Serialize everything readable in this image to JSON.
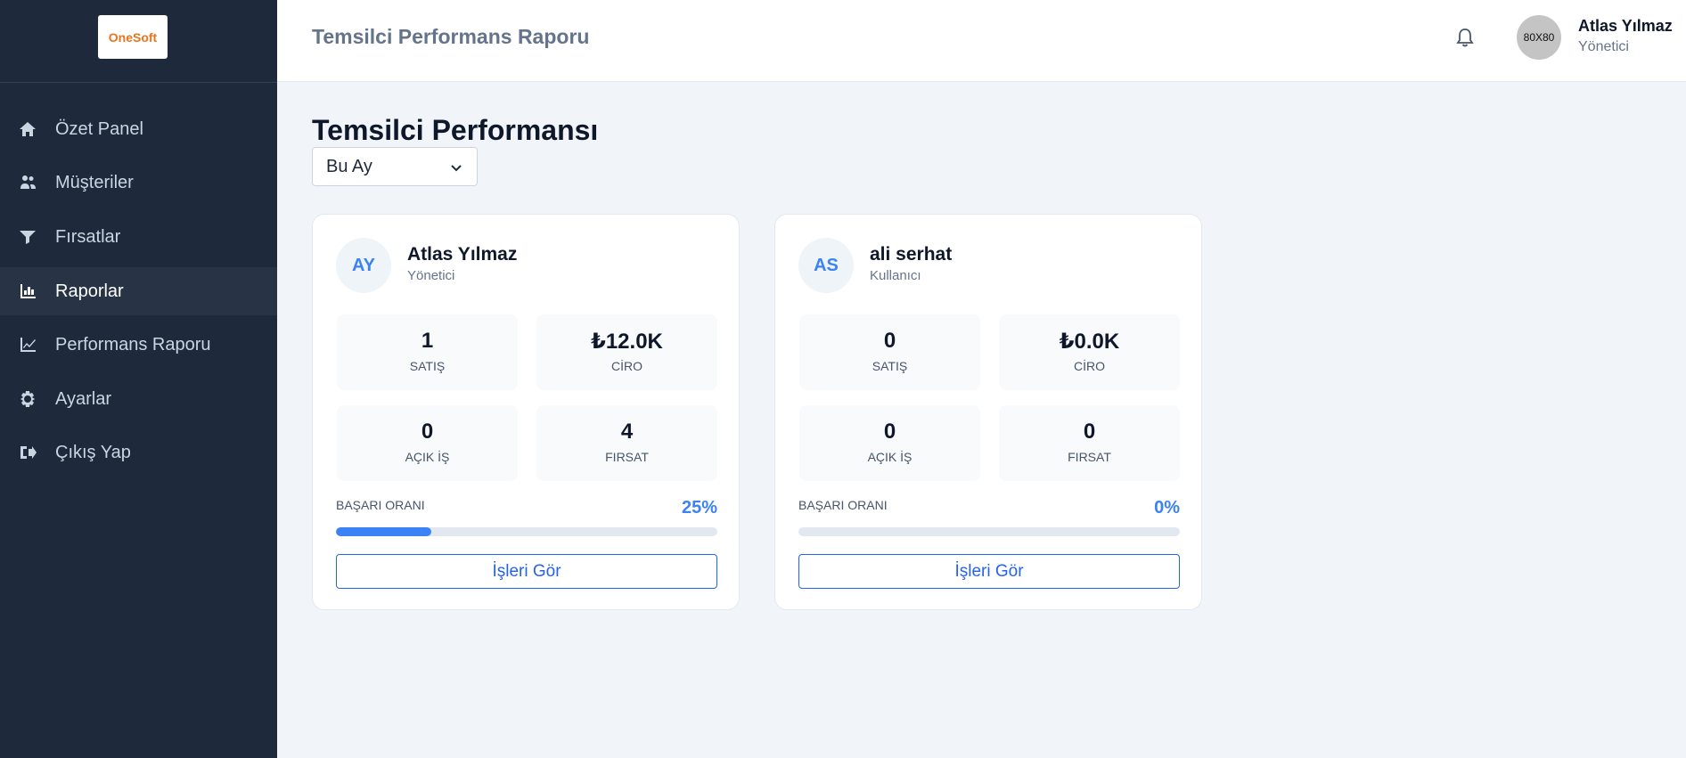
{
  "sidebar": {
    "logo": "OneSoft",
    "nav": [
      "Özet Panel",
      "Müşteriler",
      "Fırsatlar",
      "Raporlar",
      "Performans Raporu",
      "Ayarlar",
      "Çıkış Yap"
    ]
  },
  "header": {
    "title": "Temsilci Performans Raporu",
    "avatar": "80X80",
    "user_name": "Atlas Yılmaz",
    "user_role": "Yönetici"
  },
  "page": {
    "title": "Temsilci Performansı",
    "period": "Bu Ay"
  },
  "cards": [
    {
      "initials": "AY",
      "name": "Atlas Yılmaz",
      "role": "Yönetici",
      "stats": [
        {
          "value": 1,
          "label": "SATIŞ"
        },
        {
          "value": "₺12.0K",
          "label": "CİRO"
        },
        {
          "value": 0,
          "label": "AÇIK İŞ"
        },
        {
          "value": 4,
          "label": "FIRSAT"
        }
      ],
      "success_label": "BAŞARI ORANI",
      "success_rate": 25,
      "success_rate_label": "25%",
      "button": "İşleri Gör"
    },
    {
      "initials": "AS",
      "name": "ali serhat",
      "role": "Kullanıcı",
      "stats": [
        {
          "value": 0,
          "label": "SATIŞ"
        },
        {
          "value": "₺0.0K",
          "label": "CİRO"
        },
        {
          "value": 0,
          "label": "AÇIK İŞ"
        },
        {
          "value": 0,
          "label": "FIRSAT"
        }
      ],
      "success_label": "BAŞARI ORANI",
      "success_rate": 0,
      "success_rate_label": "0%",
      "button": "İşleri Gör"
    }
  ]
}
